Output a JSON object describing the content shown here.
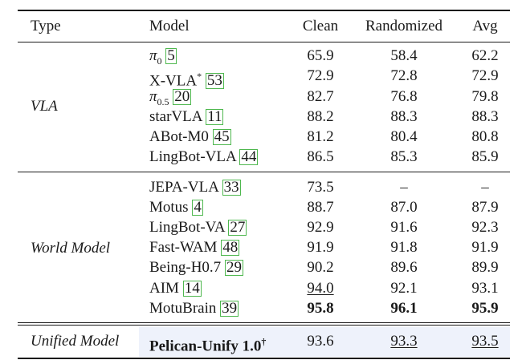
{
  "header": {
    "type": "Type",
    "model": "Model",
    "clean": "Clean",
    "randomized": "Randomized",
    "avg": "Avg"
  },
  "groups": [
    {
      "type": "VLA",
      "rows": [
        {
          "name": "π",
          "sub": "0",
          "sup": "",
          "cite": "5",
          "clean": "65.9",
          "rand": "58.4",
          "avg": "62.2"
        },
        {
          "name": "X-VLA",
          "sub": "",
          "sup": "*",
          "cite": "53",
          "clean": "72.9",
          "rand": "72.8",
          "avg": "72.9"
        },
        {
          "name": "π",
          "sub": "0.5",
          "sup": "",
          "cite": "20",
          "clean": "82.7",
          "rand": "76.8",
          "avg": "79.8"
        },
        {
          "name": "starVLA",
          "sub": "",
          "sup": "",
          "cite": "11",
          "clean": "88.2",
          "rand": "88.3",
          "avg": "88.3"
        },
        {
          "name": "ABot-M0",
          "sub": "",
          "sup": "",
          "cite": "45",
          "clean": "81.2",
          "rand": "80.4",
          "avg": "80.8"
        },
        {
          "name": "LingBot-VLA",
          "sub": "",
          "sup": "",
          "cite": "44",
          "clean": "86.5",
          "rand": "85.3",
          "avg": "85.9"
        }
      ]
    },
    {
      "type": "World Model",
      "rows": [
        {
          "name": "JEPA-VLA",
          "cite": "33",
          "clean": "73.5",
          "rand": "–",
          "avg": "–"
        },
        {
          "name": "Motus",
          "cite": "4",
          "clean": "88.7",
          "rand": "87.0",
          "avg": "87.9"
        },
        {
          "name": "LingBot-VA",
          "cite": "27",
          "clean": "92.9",
          "rand": "91.6",
          "avg": "92.3"
        },
        {
          "name": "Fast-WAM",
          "cite": "48",
          "clean": "91.9",
          "rand": "91.8",
          "avg": "91.9"
        },
        {
          "name": "Being-H0.7",
          "cite": "29",
          "clean": "90.2",
          "rand": "89.6",
          "avg": "89.9"
        },
        {
          "name": "AIM",
          "cite": "14",
          "clean": "94.0",
          "rand": "92.1",
          "avg": "93.1"
        },
        {
          "name": "MotuBrain",
          "cite": "39",
          "clean": "95.8",
          "rand": "96.1",
          "avg": "95.9"
        }
      ]
    },
    {
      "type": "Unified Model",
      "rows": [
        {
          "name": "Pelican-Unify 1.0",
          "sup": "†",
          "clean": "93.6",
          "rand": "93.3",
          "avg": "93.5"
        }
      ]
    }
  ]
}
